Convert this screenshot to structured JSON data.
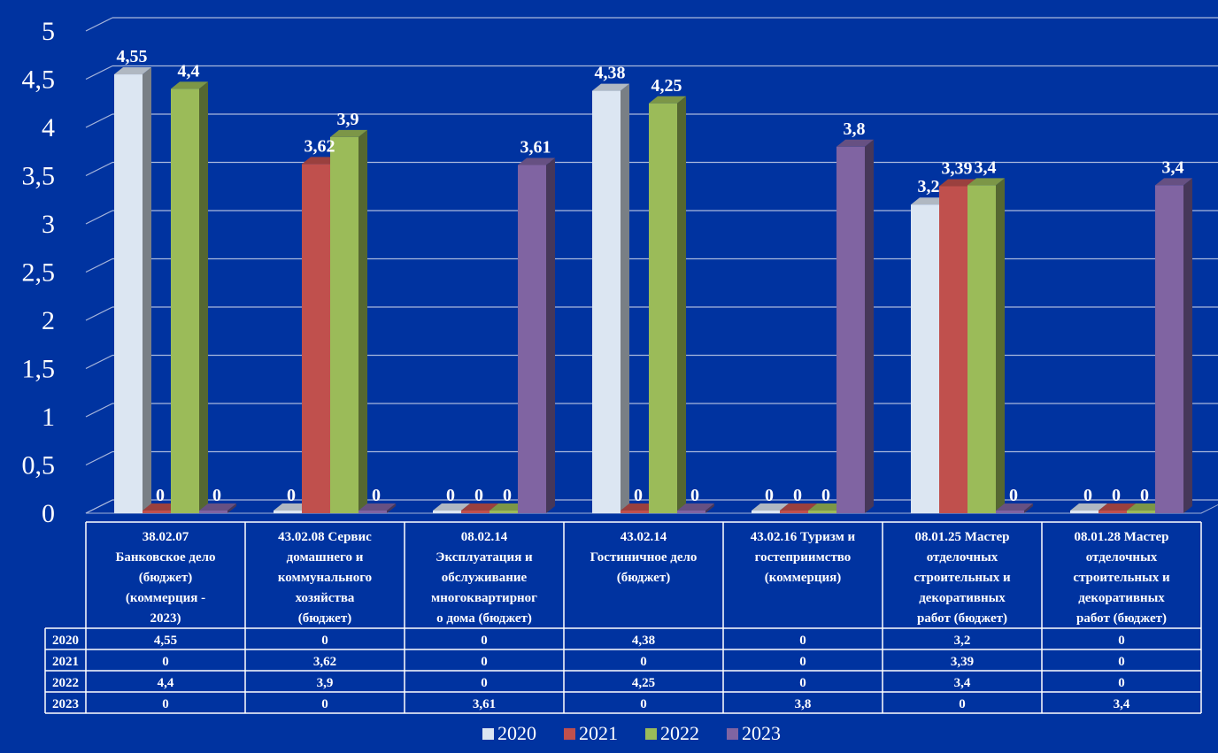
{
  "chart_data": {
    "type": "bar",
    "ylim": [
      0,
      5
    ],
    "yticks": [
      "0",
      "0,5",
      "1",
      "1,5",
      "2",
      "2,5",
      "3",
      "3,5",
      "4",
      "4,5",
      "5"
    ],
    "grid": true,
    "legend_position": "bottom",
    "categories": [
      "38.02.07 Банковское дело (бюджет) (коммерция - 2023)",
      "43.02.08 Сервис домашнего и коммунального хозяйства (бюджет)",
      "08.02.14 Эксплуатация и обслуживание многоквартирного дома (бюджет)",
      "43.02.14 Гостиничное дело (бюджет)",
      "43.02.16 Туризм и гостеприимство (коммерция)",
      "08.01.25 Мастер отделочных строительных и декоративных работ (бюджет)",
      "08.01.28 Мастер отделочных строительных и декоративных работ (бюджет)"
    ],
    "category_lines": [
      [
        "38.02.07",
        "Банковское дело",
        "(бюджет)",
        "(коммерция -",
        "2023)"
      ],
      [
        "43.02.08 Сервис",
        "домашнего и",
        "коммунального",
        "хозяйства",
        "(бюджет)"
      ],
      [
        "08.02.14",
        "Эксплуатация и",
        "обслуживание",
        "многоквартирног",
        "о дома (бюджет)"
      ],
      [
        "43.02.14",
        "Гостиничное дело",
        "(бюджет)"
      ],
      [
        "43.02.16 Туризм и",
        "гостеприимство",
        "(коммерция)"
      ],
      [
        "08.01.25 Мастер",
        "отделочных",
        "строительных и",
        "декоративных",
        "работ (бюджет)"
      ],
      [
        "08.01.28 Мастер",
        "отделочных",
        "строительных и",
        "декоративных",
        "работ (бюджет)"
      ]
    ],
    "series": [
      {
        "name": "2020",
        "color": "#dce6f2",
        "values": [
          4.55,
          0,
          0,
          4.38,
          0,
          3.2,
          0
        ],
        "labels": [
          "4,55",
          "0",
          "0",
          "4,38",
          "0",
          "3,2",
          "0"
        ]
      },
      {
        "name": "2021",
        "color": "#c0504d",
        "values": [
          0,
          3.62,
          0,
          0,
          0,
          3.39,
          0
        ],
        "labels": [
          "0",
          "3,62",
          "0",
          "0",
          "0",
          "3,39",
          "0"
        ]
      },
      {
        "name": "2022",
        "color": "#9bbb59",
        "values": [
          4.4,
          3.9,
          0,
          4.25,
          0,
          3.4,
          0
        ],
        "labels": [
          "4,4",
          "3,9",
          "0",
          "4,25",
          "0",
          "3,4",
          "0"
        ]
      },
      {
        "name": "2023",
        "color": "#8064a2",
        "values": [
          0,
          0,
          3.61,
          0,
          3.8,
          0,
          3.4
        ],
        "labels": [
          "0",
          "0",
          "3,61",
          "0",
          "3,8",
          "0",
          "3,4"
        ]
      }
    ]
  }
}
